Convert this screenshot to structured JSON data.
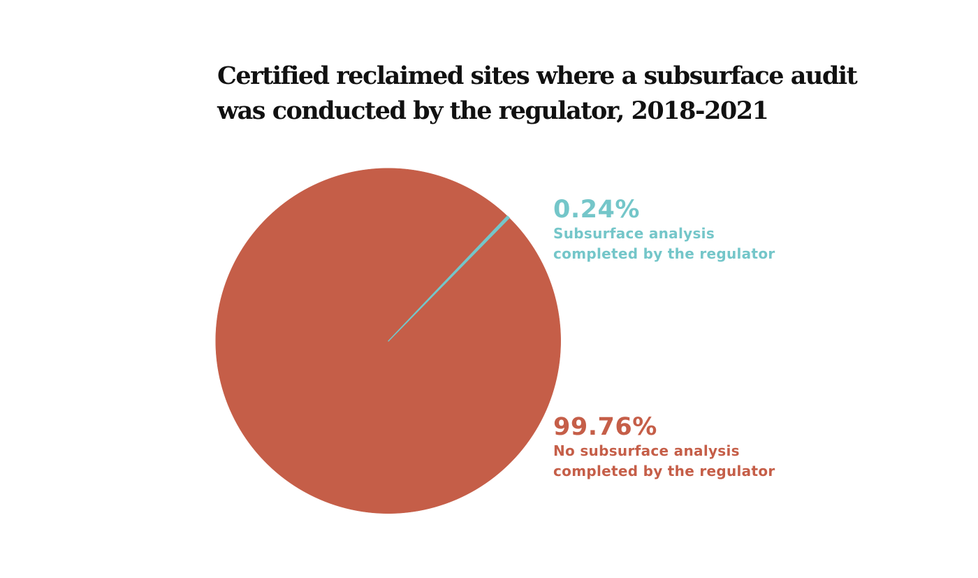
{
  "chart_data": {
    "type": "pie",
    "title": "Certified reclaimed sites where a subsurface audit was conducted by the regulator, 2018-2021",
    "title_lines": [
      "Certified reclaimed sites where a subsurface audit",
      "was conducted by the regulator, 2018-2021"
    ],
    "slices": [
      {
        "value": 0.24,
        "value_label": "0.24%",
        "label_lines": [
          "Subsurface analysis",
          "completed by the regulator"
        ],
        "color": "#74c6c9"
      },
      {
        "value": 99.76,
        "value_label": "99.76%",
        "label_lines": [
          "No subsurface analysis",
          "completed by the regulator"
        ],
        "color": "#c55e48"
      }
    ]
  }
}
